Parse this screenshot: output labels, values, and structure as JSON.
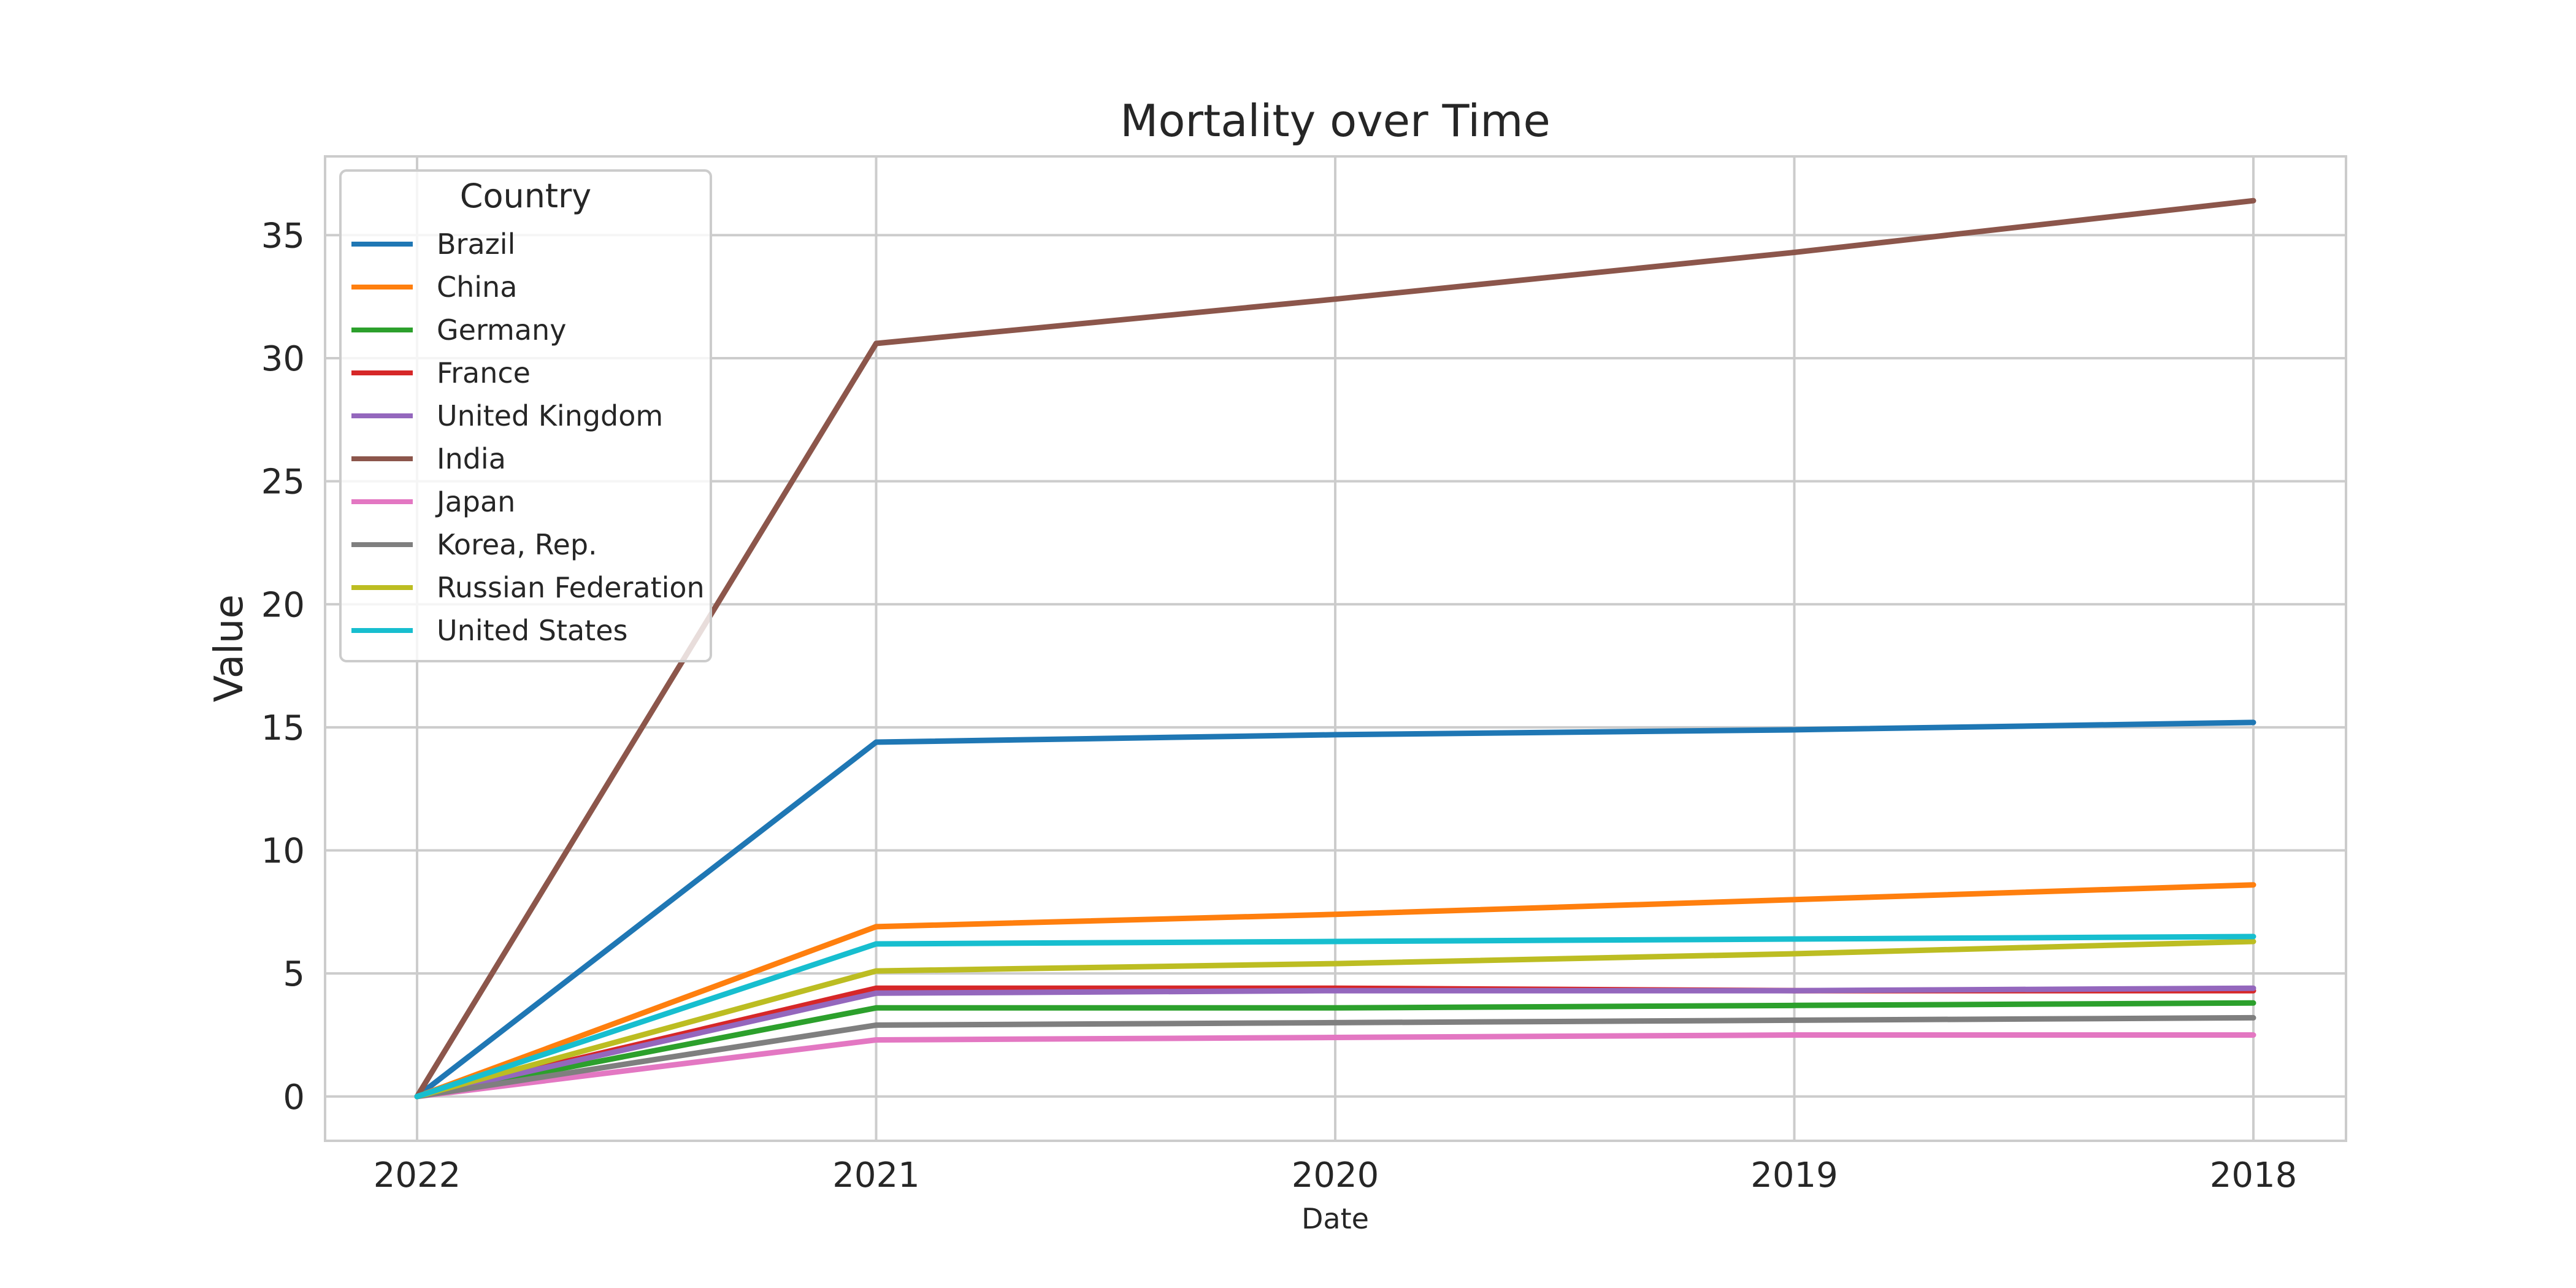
{
  "chart_data": {
    "type": "line",
    "title": "Mortality over Time",
    "xlabel": "Date",
    "ylabel": "Value",
    "x": [
      "2022",
      "2021",
      "2020",
      "2019",
      "2018"
    ],
    "ylim": [
      -1.8,
      38.2
    ],
    "yticks": [
      0,
      5,
      10,
      15,
      20,
      25,
      30,
      35
    ],
    "grid": true,
    "legend": {
      "title": "Country",
      "position": "top-left"
    },
    "series": [
      {
        "name": "Brazil",
        "color": "#1f77b4",
        "values": [
          0,
          14.4,
          14.7,
          14.9,
          15.2
        ]
      },
      {
        "name": "China",
        "color": "#ff7f0e",
        "values": [
          0,
          6.9,
          7.4,
          8.0,
          8.6
        ]
      },
      {
        "name": "Germany",
        "color": "#2ca02c",
        "values": [
          0,
          3.6,
          3.6,
          3.7,
          3.8
        ]
      },
      {
        "name": "France",
        "color": "#d62728",
        "values": [
          0,
          4.4,
          4.4,
          4.3,
          4.3
        ]
      },
      {
        "name": "United Kingdom",
        "color": "#9467bd",
        "values": [
          0,
          4.2,
          4.3,
          4.3,
          4.4
        ]
      },
      {
        "name": "India",
        "color": "#8c564b",
        "values": [
          0,
          30.6,
          32.4,
          34.3,
          36.4
        ]
      },
      {
        "name": "Japan",
        "color": "#e377c2",
        "values": [
          0,
          2.3,
          2.4,
          2.5,
          2.5
        ]
      },
      {
        "name": "Korea, Rep.",
        "color": "#7f7f7f",
        "values": [
          0,
          2.9,
          3.0,
          3.1,
          3.2
        ]
      },
      {
        "name": "Russian Federation",
        "color": "#bcbd22",
        "values": [
          0,
          5.1,
          5.4,
          5.8,
          6.3
        ]
      },
      {
        "name": "United States",
        "color": "#17becf",
        "values": [
          0,
          6.2,
          6.3,
          6.4,
          6.5
        ]
      }
    ]
  }
}
